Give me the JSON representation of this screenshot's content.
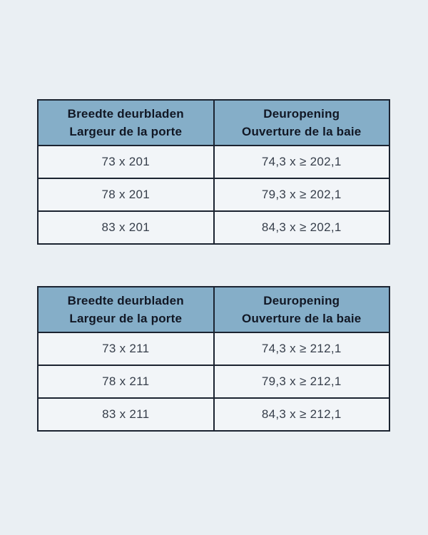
{
  "colors": {
    "page_background": "#eaeff3",
    "header_background": "#85aec8",
    "border": "#1b2330",
    "header_text": "#111724",
    "cell_text": "#363e4a",
    "cell_background": "#f2f5f8"
  },
  "tables": [
    {
      "headers": [
        {
          "line1": "Breedte deurbladen",
          "line2": "Largeur de la porte"
        },
        {
          "line1": "Deuropening",
          "line2": "Ouverture de la baie"
        }
      ],
      "rows": [
        [
          "73 x 201",
          "74,3 x ≥ 202,1"
        ],
        [
          "78 x 201",
          "79,3 x ≥ 202,1"
        ],
        [
          "83 x 201",
          "84,3 x ≥ 202,1"
        ]
      ]
    },
    {
      "headers": [
        {
          "line1": "Breedte deurbladen",
          "line2": "Largeur de la porte"
        },
        {
          "line1": "Deuropening",
          "line2": "Ouverture de la baie"
        }
      ],
      "rows": [
        [
          "73 x 211",
          "74,3 x ≥ 212,1"
        ],
        [
          "78 x 211",
          "79,3 x ≥ 212,1"
        ],
        [
          "83 x 211",
          "84,3 x ≥ 212,1"
        ]
      ]
    }
  ]
}
